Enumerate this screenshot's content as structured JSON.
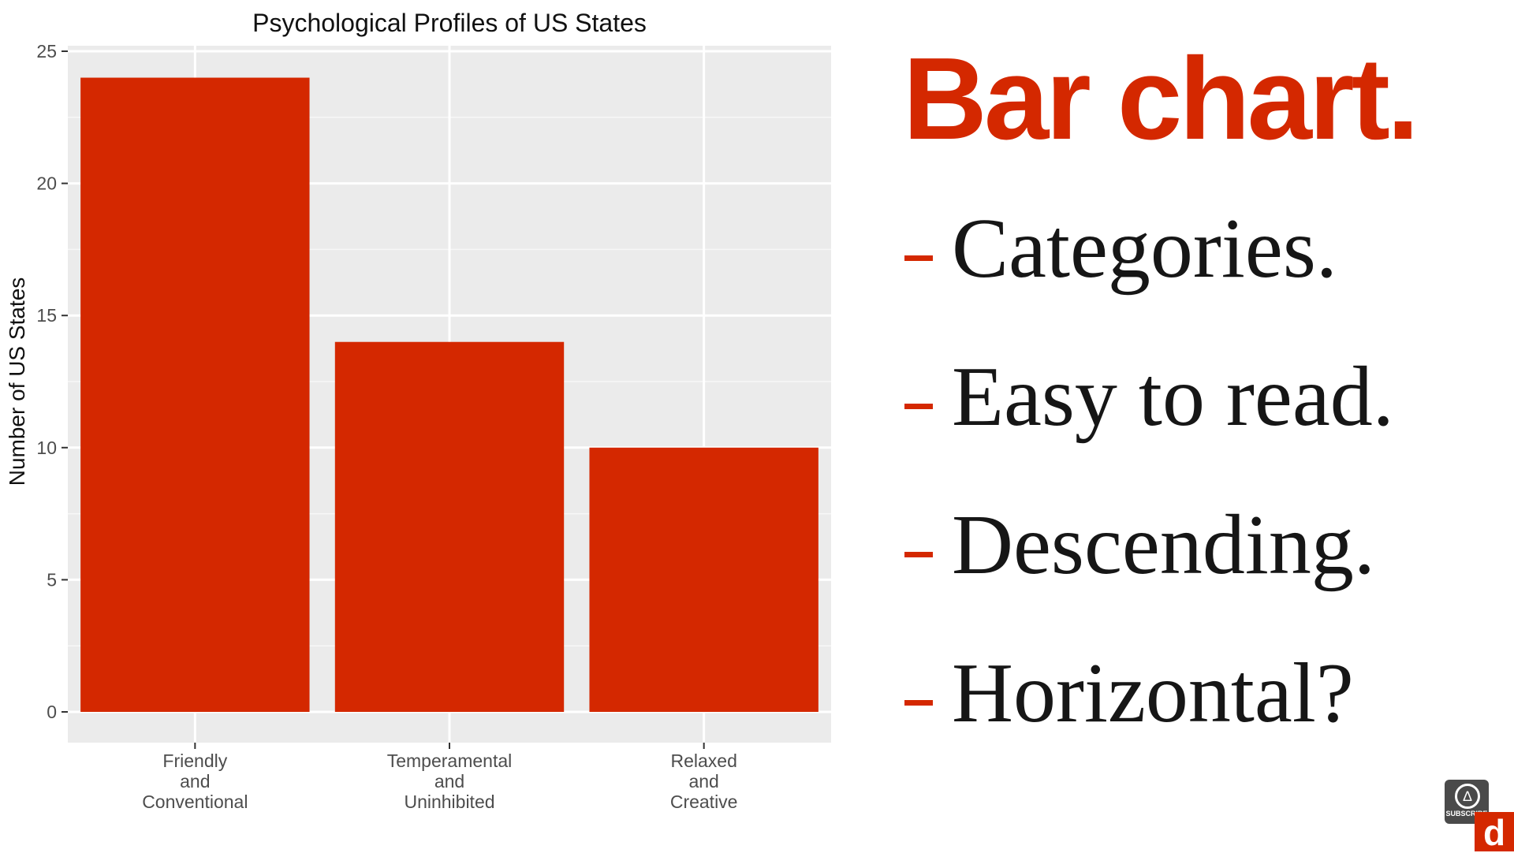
{
  "chart_data": {
    "type": "bar",
    "title": "Psychological Profiles of US States",
    "xlabel": "",
    "ylabel": "Number of US States",
    "categories": [
      [
        "Friendly",
        "and",
        "Conventional"
      ],
      [
        "Temperamental",
        "and",
        "Uninhibited"
      ],
      [
        "Relaxed",
        "and",
        "Creative"
      ]
    ],
    "values": [
      24,
      14,
      10
    ],
    "ylim": [
      0,
      25
    ],
    "yticks": [
      0,
      5,
      10,
      15,
      20,
      25
    ],
    "grid": true,
    "bar_color": "#D42800",
    "panel_background": "#EBEBEB"
  },
  "slide": {
    "heading": "Bar chart.",
    "heading_color": "#D42800",
    "dash_color": "#D42800",
    "points": [
      "Categories.",
      "Easy to read.",
      "Descending.",
      "Horizontal?"
    ]
  },
  "overlay": {
    "subscribe_label": "SUBSCRIBE",
    "subscribe_icon": "flame-icon",
    "subscribe_glyph": "∆",
    "brand_logo": "d",
    "brand_color": "#D42800"
  }
}
